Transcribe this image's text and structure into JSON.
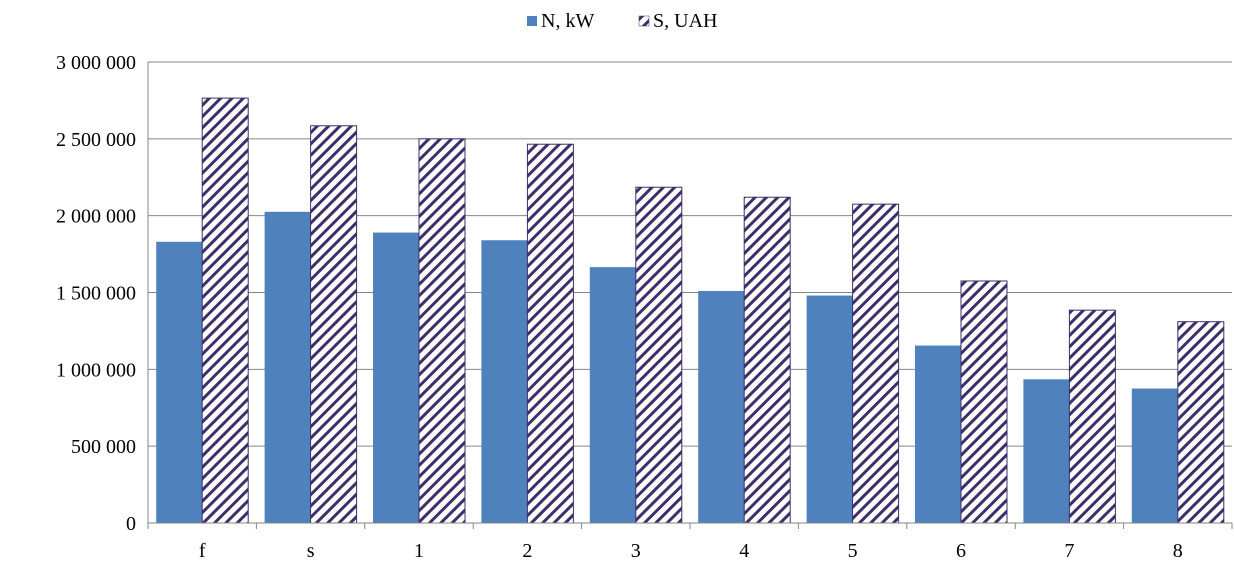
{
  "chart_data": {
    "type": "bar",
    "categories": [
      "f",
      "s",
      "1",
      "2",
      "3",
      "4",
      "5",
      "6",
      "7",
      "8"
    ],
    "series": [
      {
        "name": "N, kW",
        "values": [
          1830000,
          2025000,
          1890000,
          1840000,
          1665000,
          1510000,
          1480000,
          1155000,
          935000,
          875000
        ],
        "color": "#4f81bd",
        "pattern": "solid"
      },
      {
        "name": "S, UAH",
        "values": [
          2765000,
          2585000,
          2500000,
          2465000,
          2185000,
          2120000,
          2075000,
          1575000,
          1385000,
          1310000
        ],
        "color": "#3c2f6a",
        "pattern": "diagonal-hatch"
      }
    ],
    "y_ticks": [
      "0",
      "500 000",
      "1 000 000",
      "1 500 000",
      "2 000 000",
      "2 500 000",
      "3 000 000"
    ],
    "ylim": [
      0,
      3000000
    ],
    "grid": true,
    "legend_position": "top-center"
  }
}
